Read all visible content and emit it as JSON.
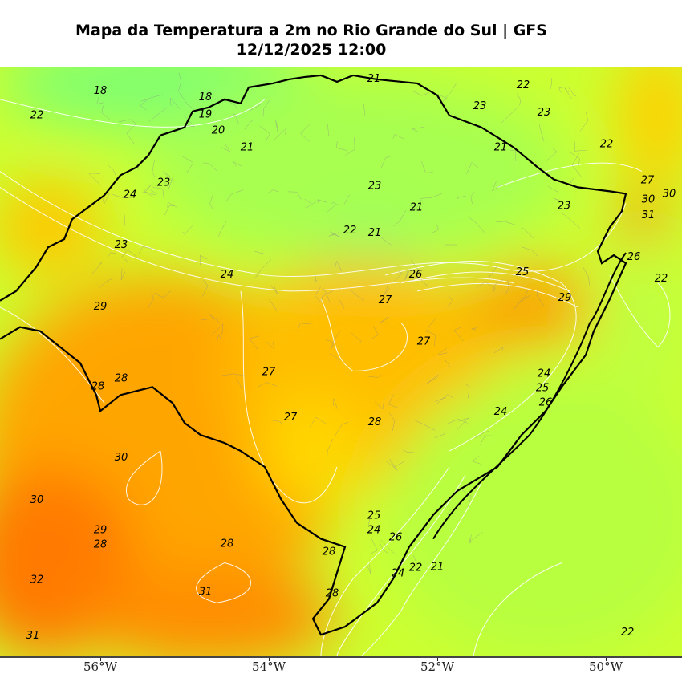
{
  "title": {
    "line1": "Mapa da Temperatura a 2m no Rio Grande do Sul | GFS",
    "line2": "12/12/2025 12:00"
  },
  "map": {
    "variable": "2m temperature",
    "region": "Rio Grande do Sul",
    "colors": {
      "cool": "#80ff70",
      "mild": "#b8ff40",
      "warm": "#ffd700",
      "hot": "#ff8c00",
      "hottest": "#ff6a00"
    },
    "x_ticks": [
      "56°W",
      "54°W",
      "52°W",
      "50°W"
    ],
    "contour_labels": [
      "18",
      "18",
      "19",
      "20",
      "22",
      "21",
      "21",
      "22",
      "23",
      "23",
      "22",
      "21",
      "23",
      "24",
      "23",
      "23",
      "22",
      "21",
      "21",
      "23",
      "24",
      "26",
      "25",
      "27",
      "29",
      "29",
      "27",
      "27",
      "28",
      "28",
      "24",
      "25",
      "26",
      "24",
      "27",
      "28",
      "30",
      "30",
      "29",
      "28",
      "28",
      "25",
      "24",
      "26",
      "28",
      "28",
      "24",
      "22",
      "21",
      "32",
      "31",
      "31",
      "22",
      "22",
      "30",
      "31",
      "27",
      "30",
      "26"
    ]
  }
}
